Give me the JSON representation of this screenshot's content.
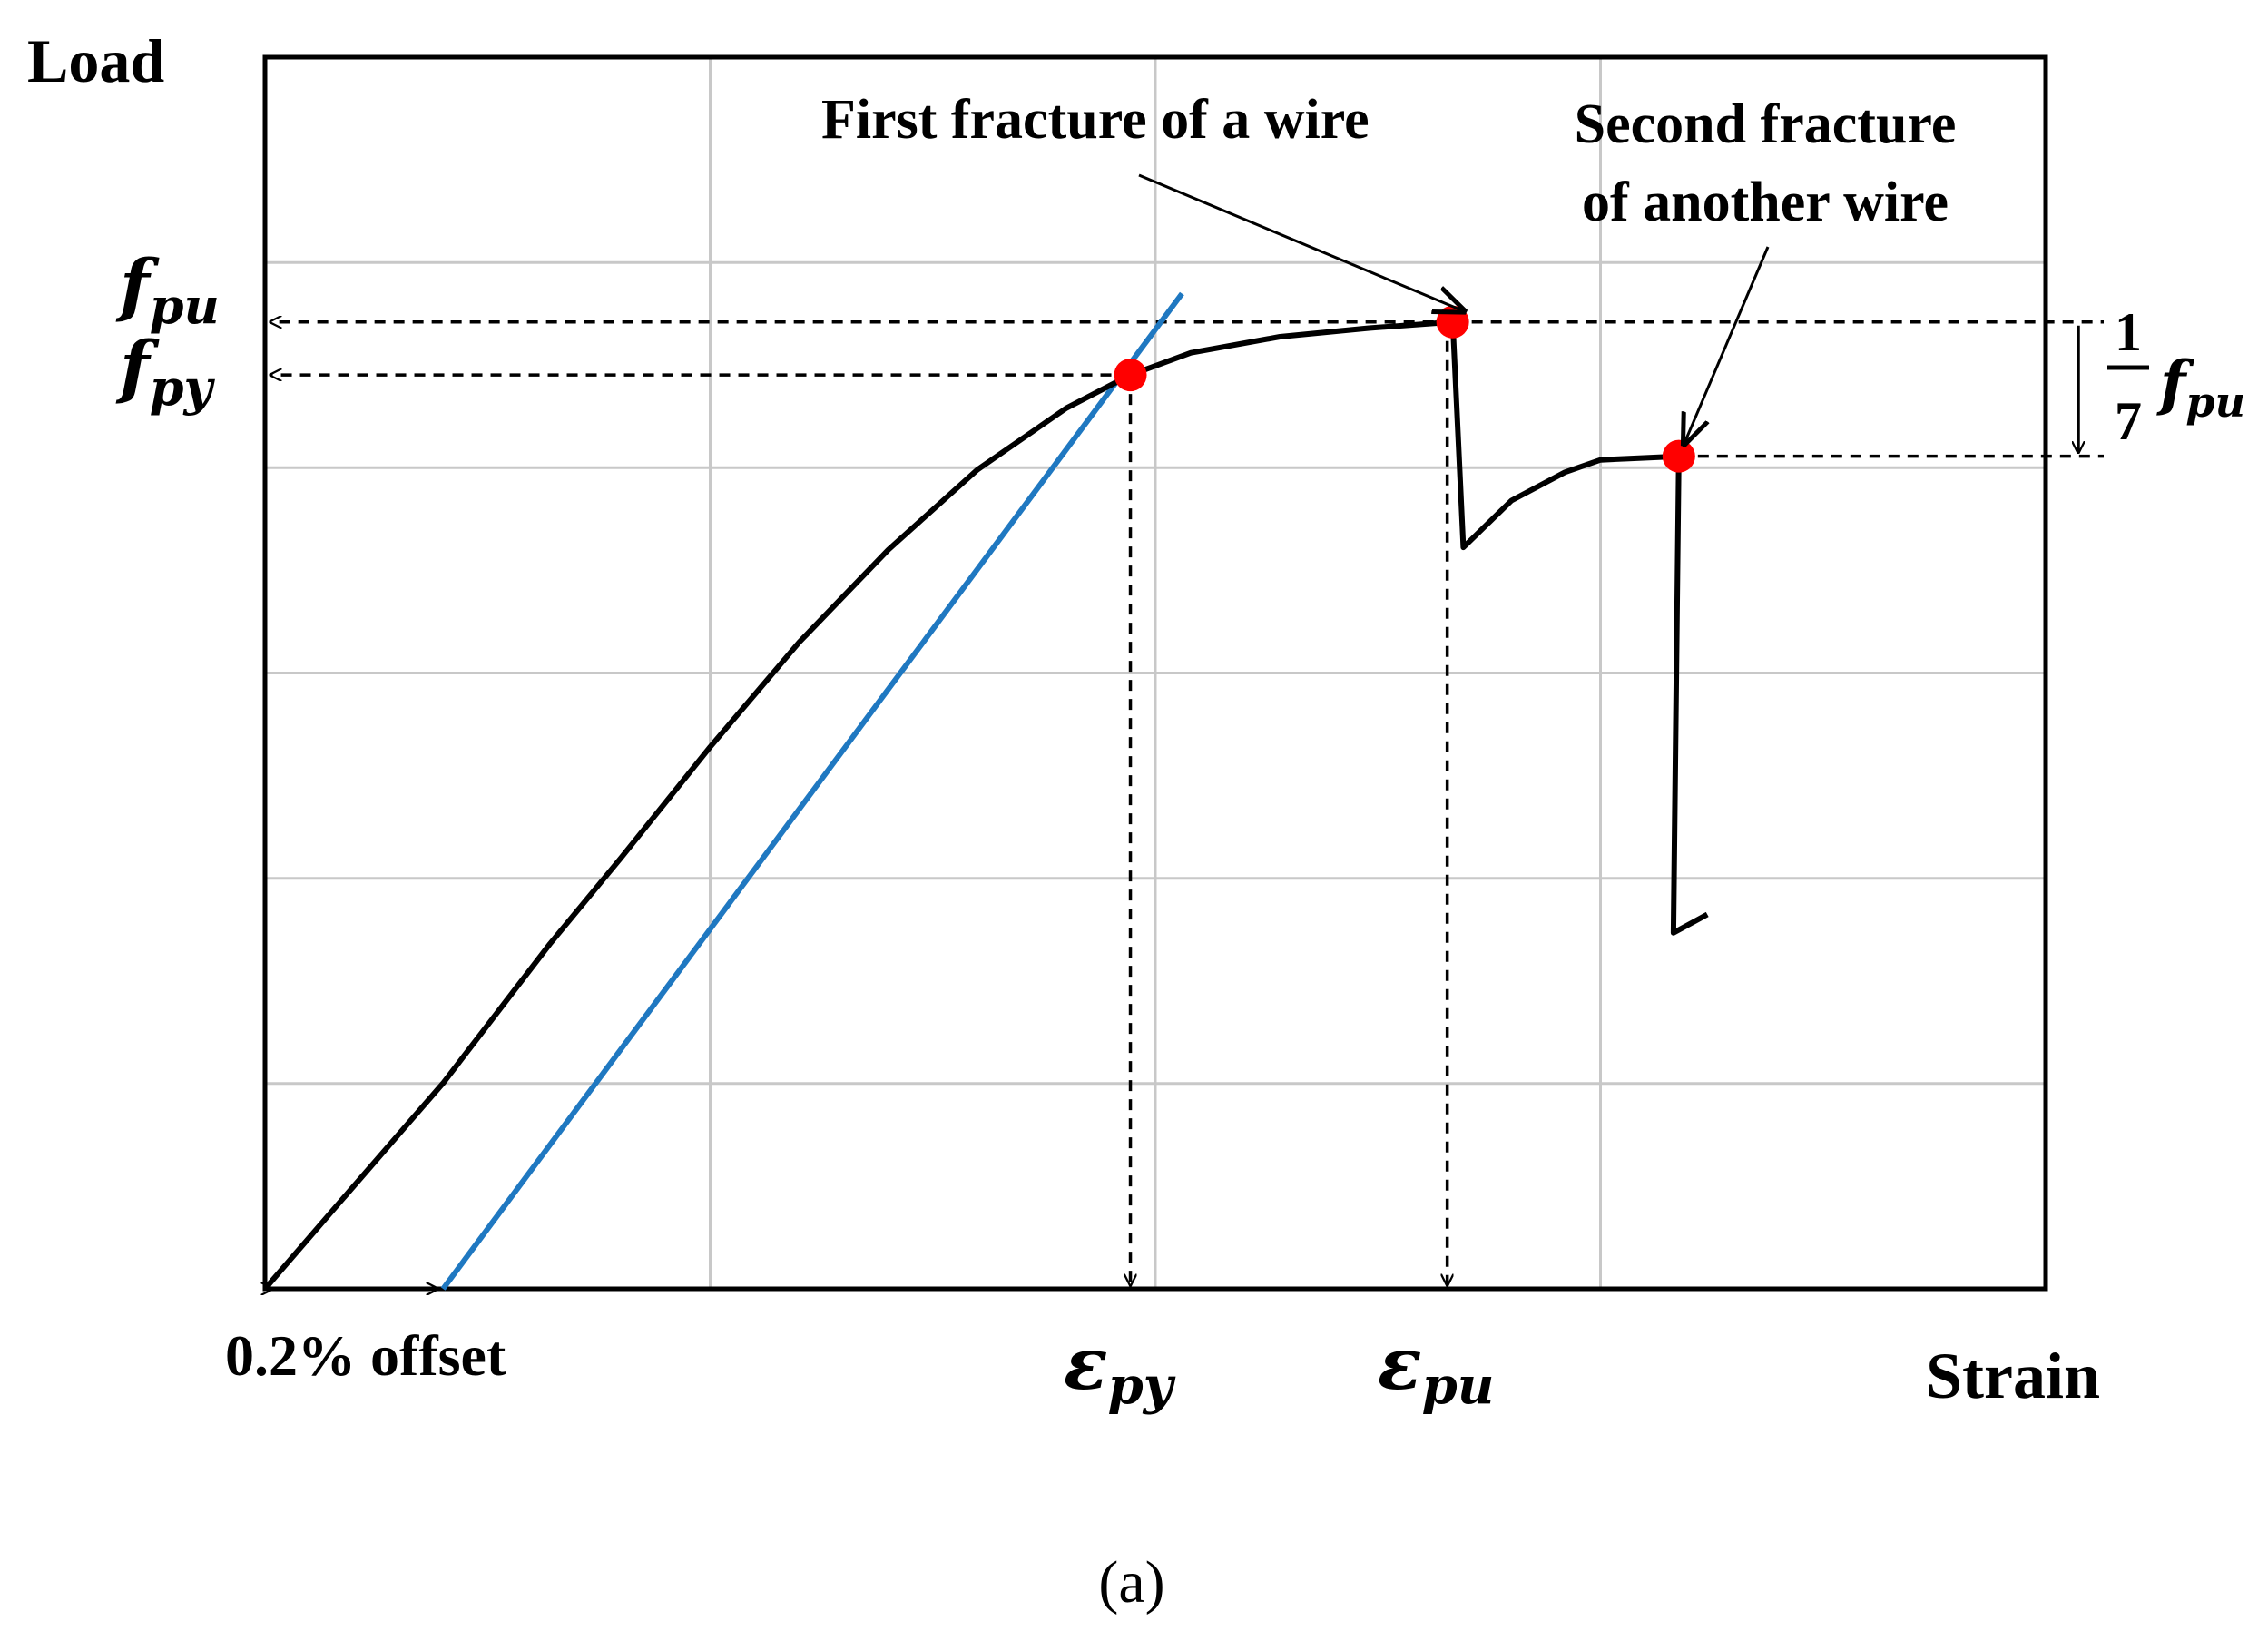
{
  "chart_data": {
    "type": "line",
    "title": "",
    "xlabel": "Strain",
    "ylabel": "Load",
    "xlim": [
      0,
      100
    ],
    "ylim": [
      0,
      100
    ],
    "grid": true,
    "x_grid": [
      25,
      50,
      75
    ],
    "y_grid": [
      16.67,
      33.33,
      50,
      66.67,
      83.33
    ],
    "series": [
      {
        "role": "load-strain-curve",
        "color": "#000000",
        "points": [
          [
            0,
            0
          ],
          [
            4,
            6.7
          ],
          [
            10,
            16.7
          ],
          [
            16,
            28
          ],
          [
            20,
            35
          ],
          [
            25,
            44
          ],
          [
            30,
            52.5
          ],
          [
            35,
            60
          ],
          [
            40,
            66.5
          ],
          [
            45,
            71.5
          ],
          [
            48.6,
            74.2
          ],
          [
            52,
            76
          ],
          [
            57,
            77.3
          ],
          [
            62,
            78
          ],
          [
            66.7,
            78.5
          ],
          [
            67.3,
            60.2
          ],
          [
            70,
            64
          ],
          [
            73,
            66.3
          ],
          [
            75,
            67.3
          ],
          [
            79.4,
            67.6
          ],
          [
            79.1,
            28.9
          ],
          [
            81,
            30.4
          ]
        ]
      },
      {
        "role": "offset-line",
        "color": "#1f78c1",
        "points": [
          [
            10,
            0
          ],
          [
            51.5,
            80.8
          ]
        ]
      }
    ],
    "markers": [
      {
        "role": "yield-point",
        "x": 48.6,
        "y": 74.2,
        "color": "#ff0000"
      },
      {
        "role": "first-fracture-point",
        "x": 66.7,
        "y": 78.5,
        "color": "#ff0000"
      },
      {
        "role": "second-fracture-point",
        "x": 79.4,
        "y": 67.6,
        "color": "#ff0000"
      }
    ],
    "annotations": {
      "first_fracture": "First fracture of a wire",
      "second_fracture_line1": "Second fracture",
      "second_fracture_line2": "of another wire",
      "offset": "0.2% offset",
      "fpu": "f",
      "fpu_sub": "pu",
      "fpy": "f",
      "fpy_sub": "py",
      "eps_py": "ε",
      "eps_py_sub": "py",
      "eps_pu": "ε",
      "eps_pu_sub": "pu",
      "frac_num": "1",
      "frac_den": "7",
      "frac_f": "f",
      "frac_sub": "pu"
    },
    "caption": "(a)"
  }
}
